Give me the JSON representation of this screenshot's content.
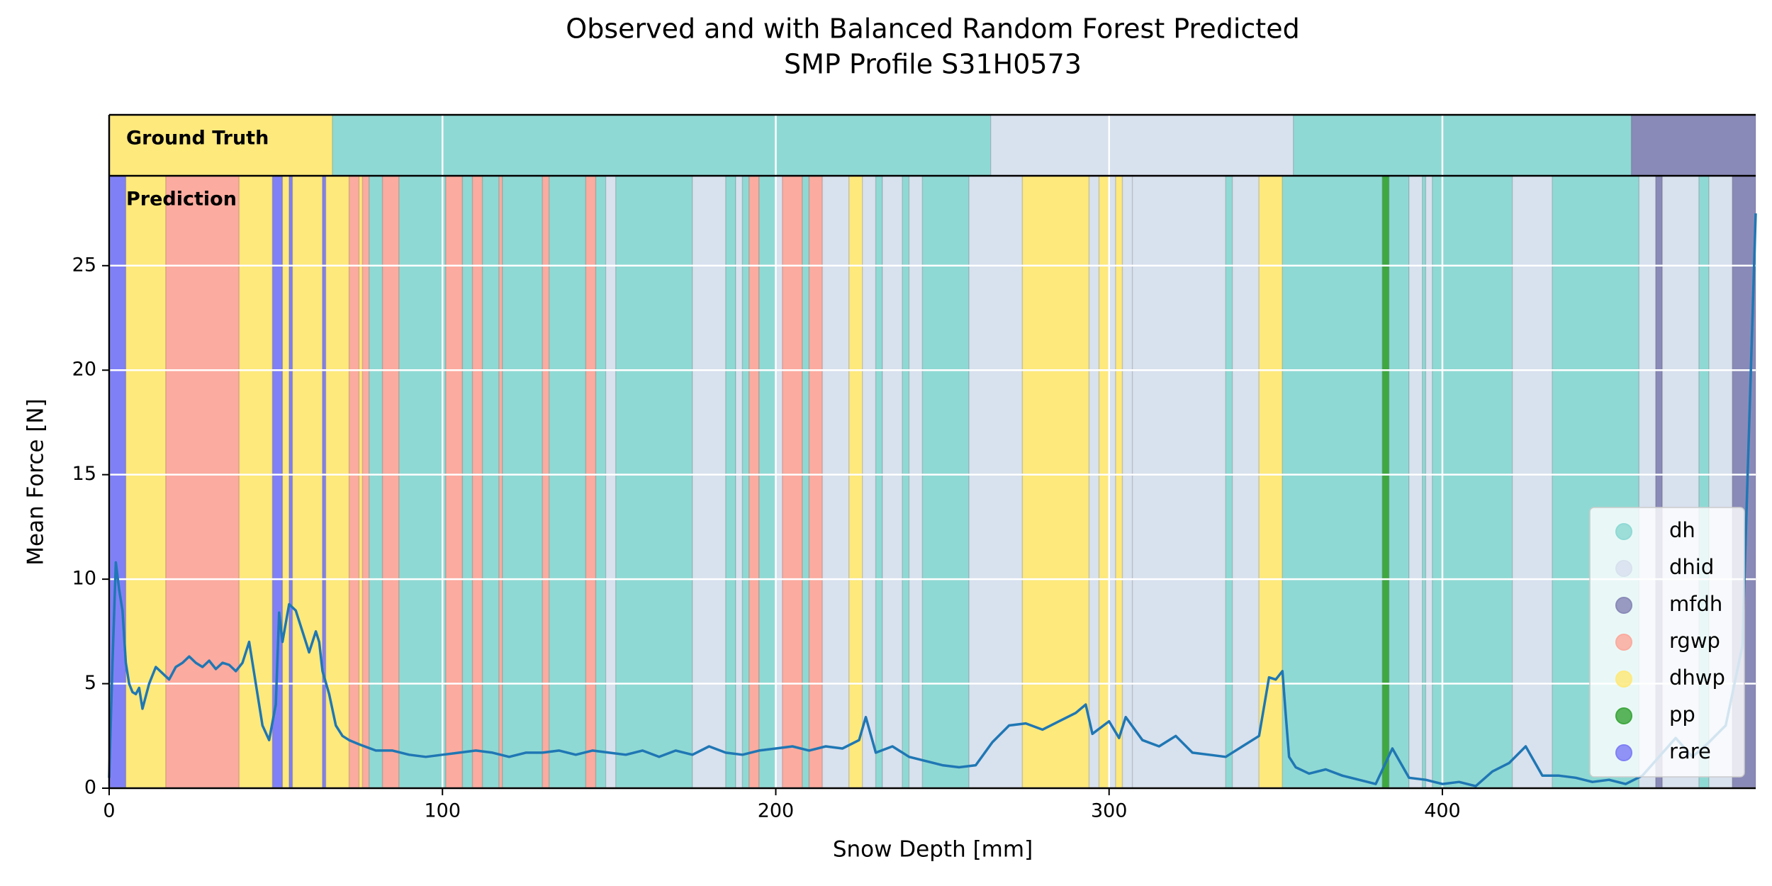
{
  "chart_data": {
    "type": "line",
    "title": "Observed and with Balanced Random Forest Predicted",
    "subtitle": "SMP Profile S31H0573",
    "xlabel": "Snow Depth [mm]",
    "ylabel": "Mean Force [N]",
    "xlim": [
      0,
      494
    ],
    "ylim": [
      0,
      29.3
    ],
    "xticks": [
      0,
      100,
      200,
      300,
      400
    ],
    "yticks": [
      0,
      5,
      10,
      15,
      20,
      25
    ],
    "grid": true,
    "legend": "lower right",
    "color": "#1f77b4",
    "x": [
      0,
      1,
      2,
      3,
      4,
      5,
      6,
      7,
      8,
      9,
      10,
      12,
      14,
      16,
      18,
      20,
      22,
      24,
      26,
      28,
      30,
      32,
      34,
      36,
      38,
      40,
      42,
      44,
      46,
      48,
      50,
      51,
      52,
      54,
      56,
      58,
      60,
      62,
      63,
      64,
      66,
      68,
      70,
      72,
      75,
      80,
      85,
      90,
      95,
      100,
      105,
      110,
      115,
      120,
      125,
      130,
      135,
      140,
      145,
      150,
      155,
      160,
      165,
      170,
      175,
      180,
      185,
      190,
      195,
      200,
      205,
      210,
      215,
      220,
      225,
      227,
      230,
      235,
      240,
      245,
      250,
      255,
      260,
      265,
      270,
      275,
      280,
      285,
      290,
      293,
      295,
      300,
      303,
      305,
      310,
      315,
      320,
      325,
      330,
      335,
      340,
      345,
      348,
      350,
      352,
      353,
      354,
      356,
      360,
      365,
      370,
      375,
      380,
      385,
      390,
      395,
      400,
      405,
      410,
      415,
      420,
      425,
      430,
      435,
      440,
      445,
      450,
      455,
      460,
      465,
      470,
      475,
      480,
      485,
      490,
      494
    ],
    "values": [
      0.5,
      6,
      10.8,
      9.5,
      8.5,
      6,
      5,
      4.6,
      4.5,
      4.8,
      3.8,
      5,
      5.8,
      5.5,
      5.2,
      5.8,
      6,
      6.3,
      6,
      5.8,
      6.1,
      5.7,
      6,
      5.9,
      5.6,
      6,
      7,
      5,
      3,
      2.3,
      4,
      8.4,
      7,
      8.8,
      8.5,
      7.5,
      6.5,
      7.5,
      7,
      5.6,
      4.5,
      3,
      2.5,
      2.3,
      2.1,
      1.8,
      1.8,
      1.6,
      1.5,
      1.6,
      1.7,
      1.8,
      1.7,
      1.5,
      1.7,
      1.7,
      1.8,
      1.6,
      1.8,
      1.7,
      1.6,
      1.8,
      1.5,
      1.8,
      1.6,
      2,
      1.7,
      1.6,
      1.8,
      1.9,
      2,
      1.8,
      2,
      1.9,
      2.3,
      3.4,
      1.7,
      2,
      1.5,
      1.3,
      1.1,
      1.0,
      1.1,
      2.2,
      3,
      3.1,
      2.8,
      3.2,
      3.6,
      4,
      2.6,
      3.2,
      2.4,
      3.4,
      2.3,
      2,
      2.5,
      1.7,
      1.6,
      1.5,
      2,
      2.5,
      5.3,
      5.2,
      5.6,
      3.5,
      1.5,
      1,
      0.7,
      0.9,
      0.6,
      0.4,
      0.2,
      1.9,
      0.5,
      0.4,
      0.2,
      0.3,
      0.1,
      0.8,
      1.2,
      2,
      0.6,
      0.6,
      0.5,
      0.3,
      0.4,
      0.2,
      0.6,
      1.5,
      2.4,
      1.5,
      2.2,
      3,
      6.8,
      27.5
    ],
    "classes": [
      {
        "name": "dh",
        "color": "#8fd9d4"
      },
      {
        "name": "dhid",
        "color": "#d8e1ee"
      },
      {
        "name": "mfdh",
        "color": "#8a8ab8"
      },
      {
        "name": "rgwp",
        "color": "#fbab9f"
      },
      {
        "name": "dhwp",
        "color": "#fde97c"
      },
      {
        "name": "pp",
        "color": "#3fa83f"
      },
      {
        "name": "rare",
        "color": "#8080f6"
      }
    ],
    "ground_truth": {
      "label": "Ground Truth",
      "segments": [
        {
          "start": 0,
          "end": 67,
          "class": "dhwp"
        },
        {
          "start": 67,
          "end": 264.5,
          "class": "dh"
        },
        {
          "start": 264.5,
          "end": 355.3,
          "class": "dhid"
        },
        {
          "start": 355.3,
          "end": 456.7,
          "class": "dh"
        },
        {
          "start": 456.7,
          "end": 494,
          "class": "mfdh"
        }
      ]
    },
    "prediction": {
      "label": "Prediction",
      "segments": [
        {
          "start": 0,
          "end": 5,
          "class": "rare"
        },
        {
          "start": 5,
          "end": 17,
          "class": "dhwp"
        },
        {
          "start": 17,
          "end": 39,
          "class": "rgwp"
        },
        {
          "start": 39,
          "end": 49,
          "class": "dhwp"
        },
        {
          "start": 49,
          "end": 52,
          "class": "rare"
        },
        {
          "start": 52,
          "end": 54,
          "class": "dhwp"
        },
        {
          "start": 54,
          "end": 55,
          "class": "rare"
        },
        {
          "start": 55,
          "end": 64,
          "class": "dhwp"
        },
        {
          "start": 64,
          "end": 65,
          "class": "rare"
        },
        {
          "start": 65,
          "end": 72,
          "class": "dhwp"
        },
        {
          "start": 72,
          "end": 75,
          "class": "rgwp"
        },
        {
          "start": 75,
          "end": 76,
          "class": "dhwp"
        },
        {
          "start": 76,
          "end": 78,
          "class": "rgwp"
        },
        {
          "start": 78,
          "end": 82,
          "class": "dh"
        },
        {
          "start": 82,
          "end": 87,
          "class": "rgwp"
        },
        {
          "start": 87,
          "end": 101,
          "class": "dh"
        },
        {
          "start": 101,
          "end": 106,
          "class": "rgwp"
        },
        {
          "start": 106,
          "end": 109,
          "class": "dh"
        },
        {
          "start": 109,
          "end": 112,
          "class": "rgwp"
        },
        {
          "start": 112,
          "end": 117,
          "class": "dh"
        },
        {
          "start": 117,
          "end": 118,
          "class": "rgwp"
        },
        {
          "start": 118,
          "end": 130,
          "class": "dh"
        },
        {
          "start": 130,
          "end": 132,
          "class": "rgwp"
        },
        {
          "start": 132,
          "end": 143,
          "class": "dh"
        },
        {
          "start": 143,
          "end": 146,
          "class": "rgwp"
        },
        {
          "start": 146,
          "end": 149,
          "class": "dh"
        },
        {
          "start": 149,
          "end": 152,
          "class": "dhid"
        },
        {
          "start": 152,
          "end": 175,
          "class": "dh"
        },
        {
          "start": 175,
          "end": 185,
          "class": "dhid"
        },
        {
          "start": 185,
          "end": 188,
          "class": "dh"
        },
        {
          "start": 188,
          "end": 190,
          "class": "dhid"
        },
        {
          "start": 190,
          "end": 192,
          "class": "dh"
        },
        {
          "start": 192,
          "end": 195,
          "class": "rgwp"
        },
        {
          "start": 195,
          "end": 200,
          "class": "dh"
        },
        {
          "start": 200,
          "end": 202,
          "class": "dhid"
        },
        {
          "start": 202,
          "end": 208,
          "class": "rgwp"
        },
        {
          "start": 208,
          "end": 210,
          "class": "dh"
        },
        {
          "start": 210,
          "end": 214,
          "class": "rgwp"
        },
        {
          "start": 214,
          "end": 222,
          "class": "dhid"
        },
        {
          "start": 222,
          "end": 226,
          "class": "dhwp"
        },
        {
          "start": 226,
          "end": 230,
          "class": "dhid"
        },
        {
          "start": 230,
          "end": 232,
          "class": "dh"
        },
        {
          "start": 232,
          "end": 238,
          "class": "dhid"
        },
        {
          "start": 238,
          "end": 240,
          "class": "dh"
        },
        {
          "start": 240,
          "end": 244,
          "class": "dhid"
        },
        {
          "start": 244,
          "end": 258,
          "class": "dh"
        },
        {
          "start": 258,
          "end": 274,
          "class": "dhid"
        },
        {
          "start": 274,
          "end": 294,
          "class": "dhwp"
        },
        {
          "start": 294,
          "end": 297,
          "class": "dhid"
        },
        {
          "start": 297,
          "end": 300,
          "class": "dhwp"
        },
        {
          "start": 300,
          "end": 302,
          "class": "dhid"
        },
        {
          "start": 302,
          "end": 304,
          "class": "dhwp"
        },
        {
          "start": 304,
          "end": 307,
          "class": "dhid"
        },
        {
          "start": 307,
          "end": 335,
          "class": "dhid"
        },
        {
          "start": 335,
          "end": 337,
          "class": "dh"
        },
        {
          "start": 337,
          "end": 345,
          "class": "dhid"
        },
        {
          "start": 345,
          "end": 352,
          "class": "dhwp"
        },
        {
          "start": 352,
          "end": 382,
          "class": "dh"
        },
        {
          "start": 382,
          "end": 384,
          "class": "pp"
        },
        {
          "start": 384,
          "end": 390,
          "class": "dh"
        },
        {
          "start": 390,
          "end": 394,
          "class": "dhid"
        },
        {
          "start": 394,
          "end": 395,
          "class": "dh"
        },
        {
          "start": 395,
          "end": 397,
          "class": "dhid"
        },
        {
          "start": 397,
          "end": 421,
          "class": "dh"
        },
        {
          "start": 421,
          "end": 433,
          "class": "dhid"
        },
        {
          "start": 433,
          "end": 459,
          "class": "dh"
        },
        {
          "start": 459,
          "end": 464,
          "class": "dhid"
        },
        {
          "start": 464,
          "end": 466,
          "class": "mfdh"
        },
        {
          "start": 466,
          "end": 477,
          "class": "dhid"
        },
        {
          "start": 477,
          "end": 480,
          "class": "dh"
        },
        {
          "start": 480,
          "end": 487,
          "class": "dhid"
        },
        {
          "start": 487,
          "end": 494,
          "class": "mfdh"
        }
      ]
    }
  }
}
